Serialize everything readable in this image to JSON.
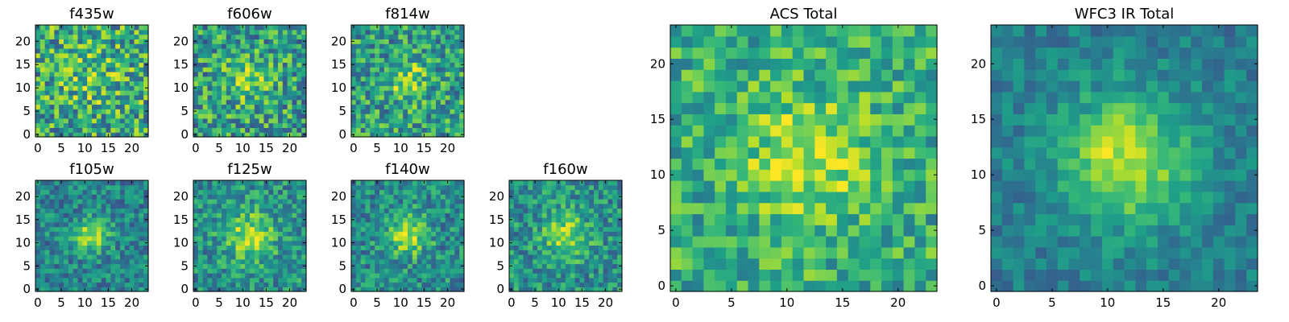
{
  "chart_data": [
    {
      "type": "heatmap",
      "title": "f435w",
      "xticks": [
        "0",
        "5",
        "10",
        "15",
        "20"
      ],
      "yticks": [
        "0",
        "5",
        "10",
        "15",
        "20"
      ],
      "xlim": [
        0,
        24
      ],
      "ylim": [
        0,
        24
      ],
      "grid_size": 24,
      "cmap": "viridis",
      "visual": {
        "peak": 0.15,
        "sigma": 4.0,
        "noise": 0.33,
        "base": 0.6
      }
    },
    {
      "type": "heatmap",
      "title": "f606w",
      "xticks": [
        "0",
        "5",
        "10",
        "15",
        "20"
      ],
      "yticks": [
        "0",
        "5",
        "10",
        "15",
        "20"
      ],
      "xlim": [
        0,
        24
      ],
      "ylim": [
        0,
        24
      ],
      "grid_size": 24,
      "cmap": "viridis",
      "visual": {
        "peak": 0.25,
        "sigma": 3.5,
        "noise": 0.3,
        "base": 0.55
      }
    },
    {
      "type": "heatmap",
      "title": "f814w",
      "xticks": [
        "0",
        "5",
        "10",
        "15",
        "20"
      ],
      "yticks": [
        "0",
        "5",
        "10",
        "15",
        "20"
      ],
      "xlim": [
        0,
        24
      ],
      "ylim": [
        0,
        24
      ],
      "grid_size": 24,
      "cmap": "viridis",
      "visual": {
        "peak": 0.3,
        "sigma": 3.0,
        "noise": 0.28,
        "base": 0.55
      }
    },
    {
      "type": "heatmap",
      "title": "f105w",
      "xticks": [
        "0",
        "5",
        "10",
        "15",
        "20"
      ],
      "yticks": [
        "0",
        "5",
        "10",
        "15",
        "20"
      ],
      "xlim": [
        0,
        24
      ],
      "ylim": [
        0,
        24
      ],
      "grid_size": 24,
      "cmap": "viridis",
      "visual": {
        "peak": 0.45,
        "sigma": 2.5,
        "noise": 0.2,
        "base": 0.45
      }
    },
    {
      "type": "heatmap",
      "title": "f125w",
      "xticks": [
        "0",
        "5",
        "10",
        "15",
        "20"
      ],
      "yticks": [
        "0",
        "5",
        "10",
        "15",
        "20"
      ],
      "xlim": [
        0,
        24
      ],
      "ylim": [
        0,
        24
      ],
      "grid_size": 24,
      "cmap": "viridis",
      "visual": {
        "peak": 0.4,
        "sigma": 3.5,
        "noise": 0.22,
        "base": 0.5
      }
    },
    {
      "type": "heatmap",
      "title": "f140w",
      "xticks": [
        "0",
        "5",
        "10",
        "15",
        "20"
      ],
      "yticks": [
        "0",
        "5",
        "10",
        "15",
        "20"
      ],
      "xlim": [
        0,
        24
      ],
      "ylim": [
        0,
        24
      ],
      "grid_size": 24,
      "cmap": "viridis",
      "visual": {
        "peak": 0.4,
        "sigma": 3.0,
        "noise": 0.22,
        "base": 0.48
      }
    },
    {
      "type": "heatmap",
      "title": "f160w",
      "xticks": [
        "0",
        "5",
        "10",
        "15",
        "20"
      ],
      "yticks": [
        "0",
        "5",
        "10",
        "15",
        "20"
      ],
      "xlim": [
        0,
        24
      ],
      "ylim": [
        0,
        24
      ],
      "grid_size": 24,
      "cmap": "viridis",
      "visual": {
        "peak": 0.38,
        "sigma": 3.2,
        "noise": 0.22,
        "base": 0.5
      }
    },
    {
      "type": "heatmap",
      "title": "ACS Total",
      "xticks": [
        "0",
        "5",
        "10",
        "15",
        "20"
      ],
      "yticks": [
        "0",
        "5",
        "10",
        "15",
        "20"
      ],
      "xlim": [
        0,
        24
      ],
      "ylim": [
        0,
        24
      ],
      "grid_size": 24,
      "cmap": "viridis",
      "visual": {
        "peak": 0.28,
        "sigma": 4.0,
        "noise": 0.22,
        "base": 0.62
      }
    },
    {
      "type": "heatmap",
      "title": "WFC3 IR Total",
      "xticks": [
        "0",
        "5",
        "10",
        "15",
        "20"
      ],
      "yticks": [
        "0",
        "5",
        "10",
        "15",
        "20"
      ],
      "xlim": [
        0,
        24
      ],
      "ylim": [
        0,
        24
      ],
      "grid_size": 24,
      "cmap": "viridis",
      "visual": {
        "peak": 0.5,
        "sigma": 4.0,
        "noise": 0.13,
        "base": 0.42
      }
    }
  ],
  "colors": {
    "viridis": [
      "#440154",
      "#482878",
      "#3e4989",
      "#31688e",
      "#26828e",
      "#1f9e89",
      "#35b779",
      "#6ece58",
      "#b5de2b",
      "#fde725"
    ],
    "frame": "#000000",
    "background": "#ffffff"
  }
}
